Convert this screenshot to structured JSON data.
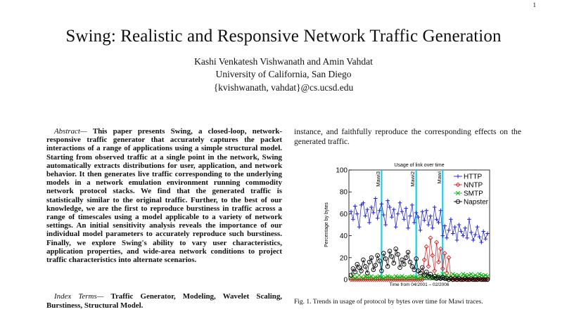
{
  "page_number": "1",
  "title": "Swing: Realistic and Responsive Network Traffic Generation",
  "authors": "Kashi Venkatesh Vishwanath and Amin Vahdat",
  "affiliation": "University of California, San Diego",
  "email": "{kvishwanath, vahdat}@cs.ucsd.edu",
  "abstract": {
    "label": "Abstract",
    "text": "This paper presents Swing, a closed-loop, network-responsive traffic generator that accurately captures the packet interactions of a range of applications using a simple structural model. Starting from observed traffic at a single point in the network, Swing automatically extracts distributions for user, application, and network behavior. It then generates live traffic corresponding to the underlying models in a network emulation environment running commodity network protocol stacks. We find that the generated traffic is statistically similar to the original traffic. Further, to the best of our knowledge, we are the first to reproduce burstiness in traffic across a range of timescales using a model applicable to a variety of network settings. An initial sensitivity analysis reveals the importance of our individual model parameters to accurately reproduce such burstiness. Finally, we explore Swing's ability to vary user characteristics, application properties, and wide-area network conditions to project traffic characteristics into alternate scenarios."
  },
  "index_terms": {
    "label": "Index Terms",
    "text": "Traffic Generator, Modeling, Wavelet Scaling, Burstiness, Structural Model."
  },
  "right_text": "instance, and faithfully reproduce the corresponding effects on the generated traffic.",
  "caption": "Fig. 1.   Trends in usage of protocol by bytes over time for Mawi traces.",
  "chart_data": {
    "type": "scatter",
    "title": "Usage of link over time",
    "xlabel": "Time from 04/2001 – 02/2006",
    "ylabel": "Percentage by bytes",
    "ylim": [
      0,
      100
    ],
    "yticks": [
      "0",
      "20",
      "40",
      "60",
      "80",
      "100"
    ],
    "grid": false,
    "legend_position": "top-right",
    "annotations": [
      "Mawi3",
      "Mawi2",
      "Mawi"
    ],
    "series": [
      {
        "name": "HTTP",
        "marker": "plus",
        "color": "#1f1fe0",
        "values": [
          62,
          55,
          67,
          60,
          48,
          68,
          70,
          58,
          64,
          52,
          66,
          61,
          74,
          56,
          63,
          69,
          59,
          50,
          72,
          66,
          57,
          64,
          48,
          60,
          70,
          62,
          55,
          65,
          47,
          58,
          68,
          52,
          61,
          57,
          45,
          62,
          54,
          63,
          50,
          58,
          47,
          66,
          55,
          52,
          63,
          40,
          49,
          38,
          45,
          55,
          42,
          48,
          36,
          50,
          44,
          40,
          47,
          38,
          55,
          43,
          36,
          41,
          48,
          39,
          34,
          44,
          37,
          42
        ]
      },
      {
        "name": "NNTP",
        "marker": "diamond",
        "color": "#e01f1f",
        "values": [
          0,
          0,
          0,
          0,
          0,
          0,
          0,
          0,
          0,
          0,
          0,
          0,
          0,
          0,
          0,
          0,
          0,
          0,
          0,
          0,
          0,
          0,
          0,
          0,
          0,
          0,
          0,
          0,
          0,
          0,
          0,
          0,
          0,
          0,
          0,
          0,
          18,
          30,
          12,
          38,
          22,
          8,
          34,
          16,
          28,
          10,
          24,
          6,
          20,
          2,
          0,
          0,
          0,
          0,
          0,
          0,
          0,
          0,
          0,
          0,
          0,
          0,
          0,
          0,
          0,
          0,
          0,
          0
        ]
      },
      {
        "name": "SMTP",
        "marker": "x",
        "color": "#10b010",
        "values": [
          2,
          3,
          1,
          2,
          4,
          2,
          1,
          3,
          2,
          2,
          3,
          1,
          2,
          2,
          3,
          2,
          1,
          2,
          3,
          2,
          2,
          1,
          3,
          2,
          2,
          3,
          2,
          1,
          2,
          2,
          3,
          2,
          2,
          1,
          2,
          3,
          2,
          2,
          3,
          2,
          1,
          2,
          4,
          3,
          2,
          5,
          3,
          4,
          2,
          3,
          5,
          4,
          3,
          4,
          2,
          5,
          4,
          3,
          4,
          5,
          3,
          4,
          3,
          5,
          4,
          3,
          4,
          3
        ]
      },
      {
        "name": "Napster",
        "marker": "circle",
        "color": "#000000",
        "values": [
          4,
          10,
          7,
          14,
          11,
          8,
          18,
          12,
          6,
          16,
          20,
          9,
          13,
          22,
          17,
          8,
          24,
          19,
          12,
          26,
          21,
          15,
          28,
          23,
          11,
          18,
          14,
          20,
          25,
          16,
          12,
          9,
          19,
          8,
          6,
          11,
          4,
          7,
          3,
          5,
          2,
          3,
          1,
          2,
          1,
          2,
          1,
          1,
          0,
          1,
          0,
          1,
          0,
          1,
          0,
          0,
          1,
          0,
          0,
          1,
          0,
          0,
          0,
          1,
          0,
          0,
          0,
          0
        ]
      }
    ]
  }
}
